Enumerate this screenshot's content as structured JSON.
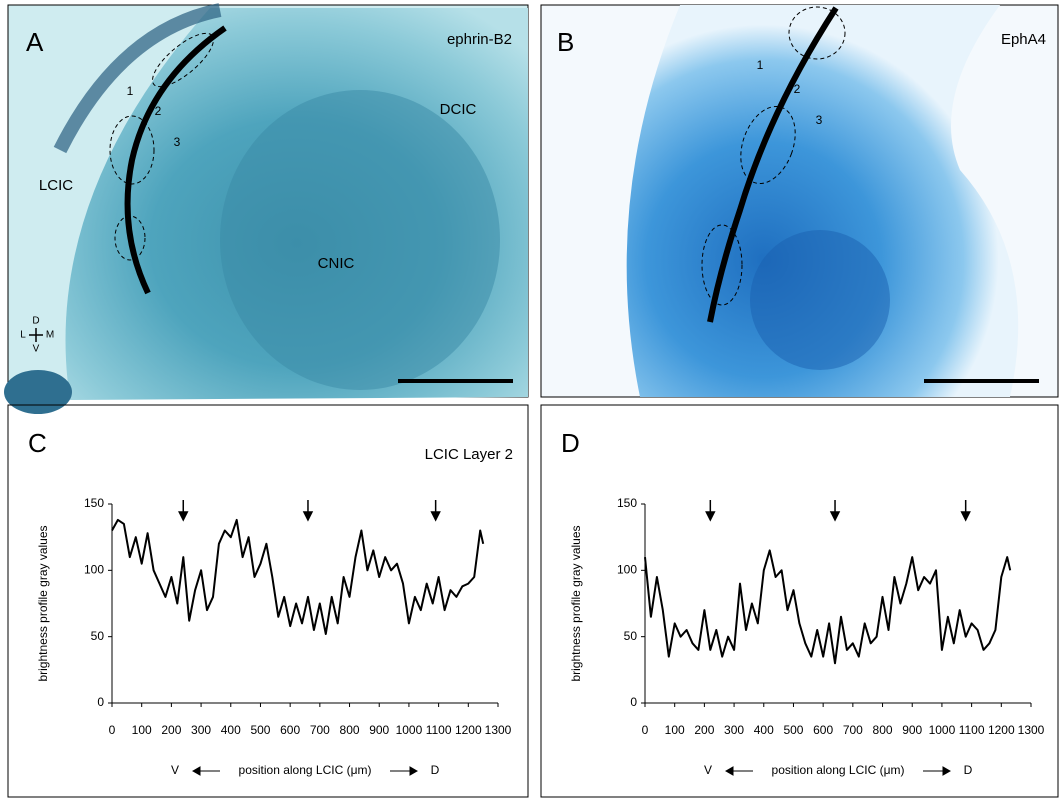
{
  "images": [
    {
      "letter": "A",
      "stain": "ephrin-B2",
      "regions": [
        "DCIC",
        "LCIC",
        "CNIC"
      ],
      "layers": [
        "1",
        "2",
        "3"
      ],
      "orientation": {
        "dorsal": "D",
        "lateral": "L",
        "medial": "M",
        "ventral": "V"
      }
    },
    {
      "letter": "B",
      "stain": "EphA4",
      "layers": [
        "1",
        "2",
        "3"
      ]
    }
  ],
  "chart_data": [
    {
      "type": "line",
      "letter": "C",
      "title": "LCIC Layer 2",
      "ylabel": "brightness profile gray values",
      "xlabel": "position along LCIC (μm)",
      "x_start_label": "V",
      "x_end_label": "D",
      "xlim": [
        0,
        1300
      ],
      "xticks": [
        0,
        100,
        200,
        300,
        400,
        500,
        600,
        700,
        800,
        900,
        1000,
        1100,
        1200,
        1300
      ],
      "ylim": [
        0,
        150
      ],
      "yticks": [
        0,
        50,
        100,
        150
      ],
      "arrows": [
        240,
        660,
        1090
      ],
      "x": [
        0,
        20,
        40,
        60,
        80,
        100,
        120,
        140,
        160,
        180,
        200,
        220,
        240,
        260,
        280,
        300,
        320,
        340,
        360,
        380,
        400,
        420,
        440,
        460,
        480,
        500,
        520,
        540,
        560,
        580,
        600,
        620,
        640,
        660,
        680,
        700,
        720,
        740,
        760,
        780,
        800,
        820,
        840,
        860,
        880,
        900,
        920,
        940,
        960,
        980,
        1000,
        1020,
        1040,
        1060,
        1080,
        1100,
        1120,
        1140,
        1160,
        1180,
        1200,
        1220,
        1240,
        1250
      ],
      "series": [
        {
          "color": "#000000",
          "values": [
            130,
            138,
            135,
            110,
            125,
            105,
            128,
            100,
            90,
            80,
            95,
            75,
            110,
            62,
            85,
            100,
            70,
            80,
            120,
            130,
            125,
            138,
            110,
            125,
            95,
            105,
            120,
            95,
            65,
            80,
            58,
            75,
            60,
            80,
            55,
            75,
            52,
            80,
            60,
            95,
            80,
            110,
            130,
            100,
            115,
            95,
            110,
            100,
            105,
            90,
            60,
            80,
            70,
            90,
            75,
            95,
            70,
            85,
            80,
            88,
            90,
            95,
            130,
            120
          ]
        }
      ]
    },
    {
      "type": "line",
      "letter": "D",
      "ylabel": "brightness profile gray values",
      "xlabel": "position along LCIC (μm)",
      "x_start_label": "V",
      "x_end_label": "D",
      "xlim": [
        0,
        1300
      ],
      "xticks": [
        0,
        100,
        200,
        300,
        400,
        500,
        600,
        700,
        800,
        900,
        1000,
        1100,
        1200,
        1300
      ],
      "ylim": [
        0,
        150
      ],
      "yticks": [
        0,
        50,
        100,
        150
      ],
      "arrows": [
        220,
        640,
        1080
      ],
      "x": [
        0,
        20,
        40,
        60,
        80,
        100,
        120,
        140,
        160,
        180,
        200,
        220,
        240,
        260,
        280,
        300,
        320,
        340,
        360,
        380,
        400,
        420,
        440,
        460,
        480,
        500,
        520,
        540,
        560,
        580,
        600,
        620,
        640,
        660,
        680,
        700,
        720,
        740,
        760,
        780,
        800,
        820,
        840,
        860,
        880,
        900,
        920,
        940,
        960,
        980,
        1000,
        1020,
        1040,
        1060,
        1080,
        1100,
        1120,
        1140,
        1160,
        1180,
        1200,
        1220,
        1230
      ],
      "series": [
        {
          "color": "#000000",
          "values": [
            110,
            65,
            95,
            70,
            35,
            60,
            50,
            55,
            45,
            40,
            70,
            40,
            55,
            35,
            50,
            40,
            90,
            55,
            75,
            60,
            100,
            115,
            95,
            100,
            70,
            85,
            60,
            45,
            35,
            55,
            35,
            60,
            30,
            65,
            40,
            45,
            35,
            60,
            45,
            50,
            80,
            55,
            95,
            75,
            90,
            110,
            85,
            95,
            90,
            100,
            40,
            65,
            45,
            70,
            50,
            60,
            55,
            40,
            45,
            55,
            95,
            110,
            100
          ]
        }
      ]
    }
  ]
}
